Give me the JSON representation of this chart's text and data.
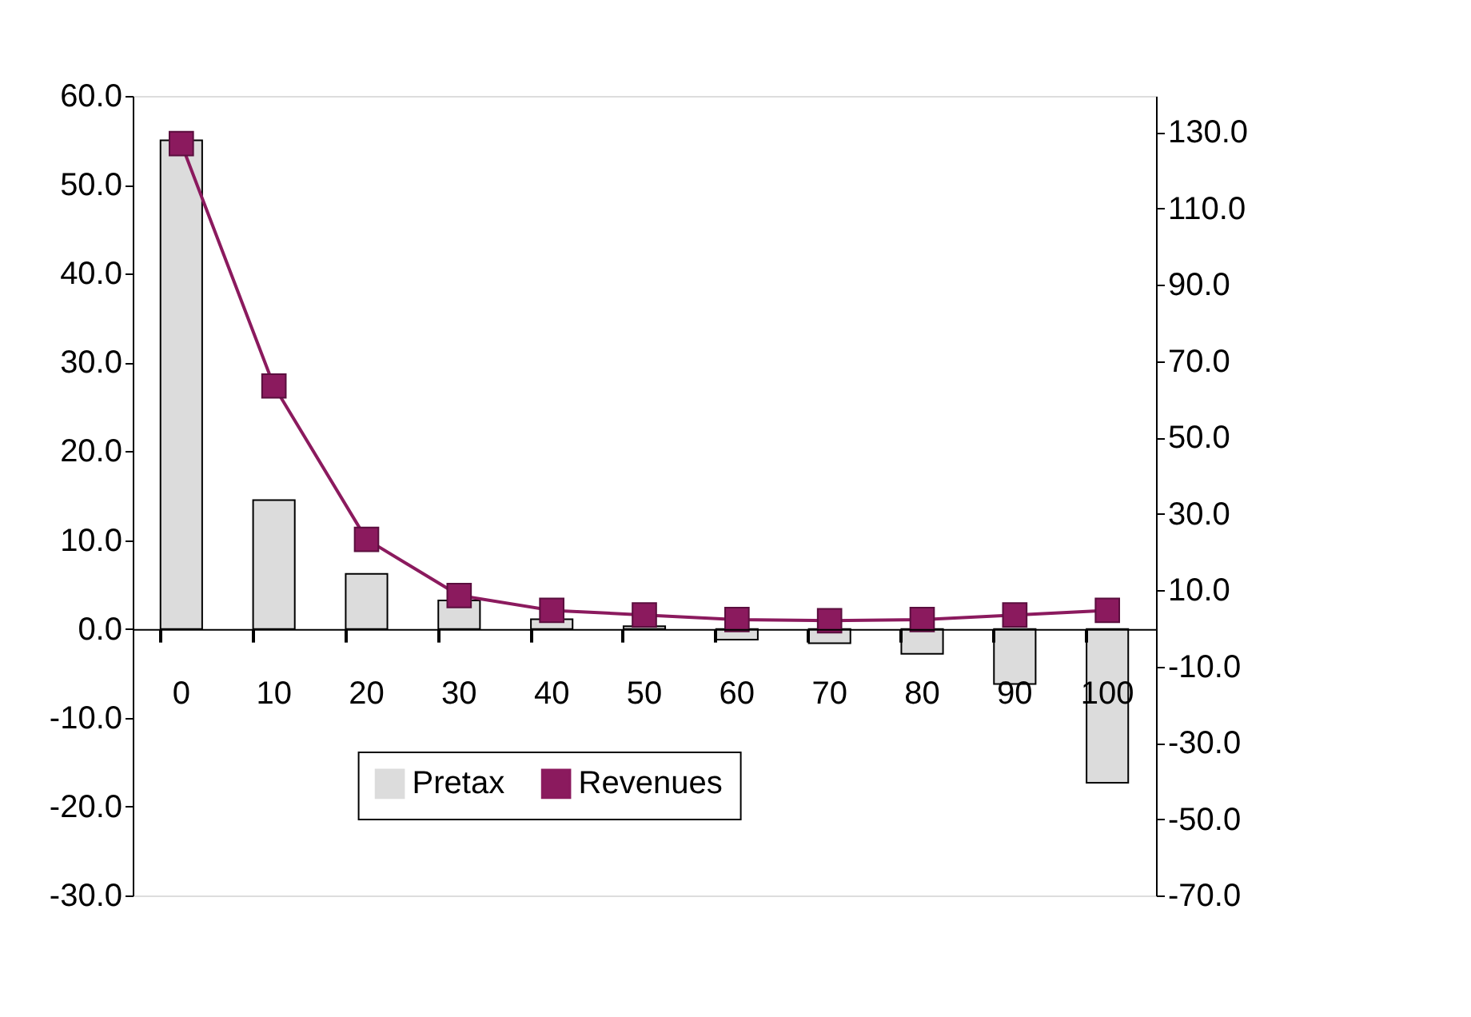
{
  "chart_data": {
    "type": "bar",
    "categories": [
      "0",
      "10",
      "20",
      "30",
      "40",
      "50",
      "60",
      "70",
      "80",
      "90",
      "100"
    ],
    "series": [
      {
        "name": "Pretax",
        "color": "#dcdcdc",
        "values": [
          55.0,
          14.5,
          6.2,
          3.2,
          1.1,
          0.3,
          -1.2,
          -1.6,
          -2.8,
          -6.2,
          -17.3
        ]
      },
      {
        "name": "Revenues",
        "type": "line",
        "axis": "y2",
        "color": "#8b1a5e",
        "marker": "square",
        "values": [
          127,
          63.5,
          23.3,
          8.6,
          4.7,
          3.5,
          2.3,
          2.0,
          2.3,
          3.5,
          4.7
        ]
      }
    ],
    "ylim": [
      -30,
      60
    ],
    "yticks": [
      {
        "value": 60,
        "label": "60.0"
      },
      {
        "value": 50,
        "label": "50.0"
      },
      {
        "value": 40,
        "label": "40.0"
      },
      {
        "value": 30,
        "label": "30.0"
      },
      {
        "value": 20,
        "label": "20.0"
      },
      {
        "value": 10,
        "label": "10.0"
      },
      {
        "value": 0,
        "label": "0.0"
      },
      {
        "value": -10,
        "label": "-10.0"
      },
      {
        "value": -20,
        "label": "-20.0"
      },
      {
        "value": -30,
        "label": "-30.0"
      }
    ],
    "y2lim": [
      -70,
      139.5
    ],
    "y2ticks": [
      {
        "value": 130,
        "label": "130.0"
      },
      {
        "value": 110,
        "label": "110.0"
      },
      {
        "value": 90,
        "label": "90.0"
      },
      {
        "value": 70,
        "label": "70.0"
      },
      {
        "value": 50,
        "label": "50.0"
      },
      {
        "value": 30,
        "label": "30.0"
      },
      {
        "value": 10,
        "label": "10.0"
      },
      {
        "value": -10,
        "label": "-10.0"
      },
      {
        "value": -30,
        "label": "-30.0"
      },
      {
        "value": -50,
        "label": "-50.0"
      },
      {
        "value": -70,
        "label": "-70.0"
      }
    ],
    "grid": false,
    "legend": "bottom"
  }
}
